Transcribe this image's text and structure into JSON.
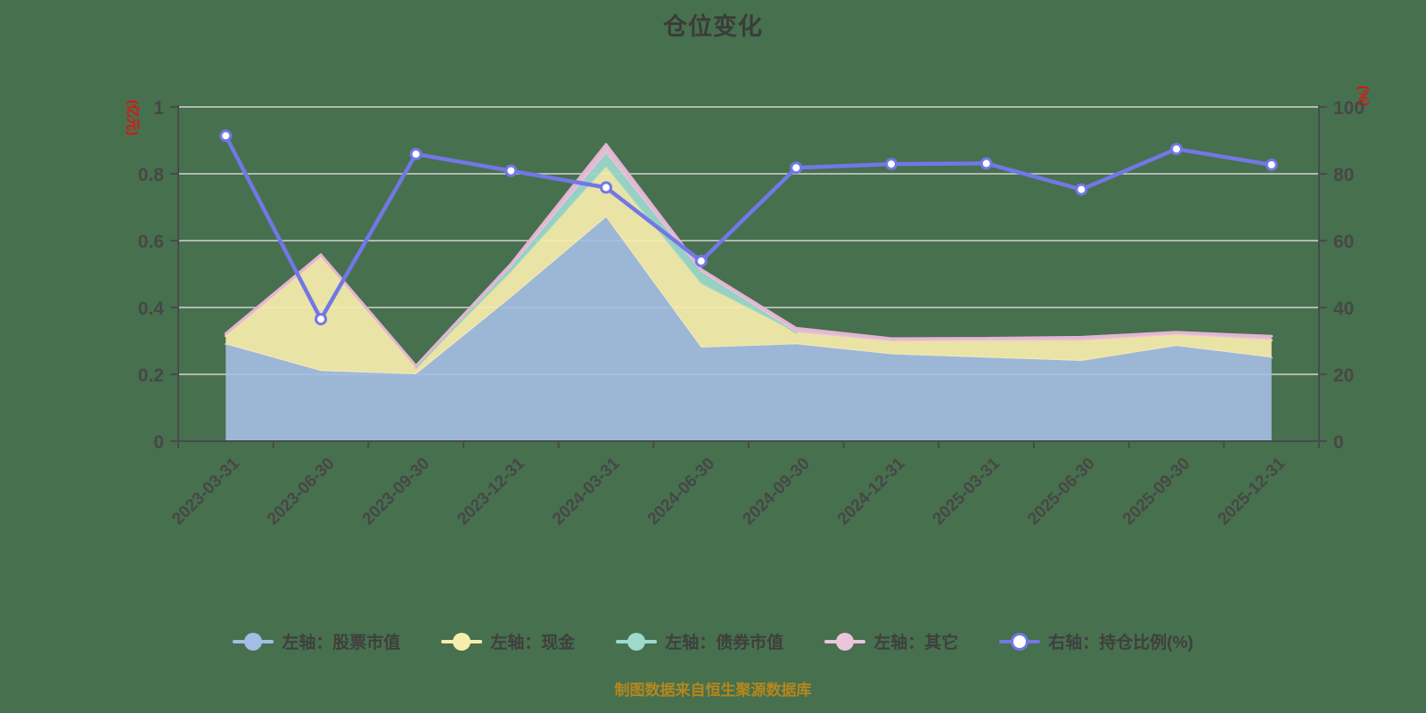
{
  "title": "仓位变化",
  "caption": "制图数据来自恒生聚源数据库",
  "background_color": "#47704e",
  "chart_data": {
    "type": "area",
    "subtype": "stacked-area-with-line",
    "categories": [
      "2023-03-31",
      "2023-06-30",
      "2023-09-30",
      "2023-12-31",
      "2024-03-31",
      "2024-06-30",
      "2024-09-30",
      "2024-12-31",
      "2025-03-31",
      "2025-06-30",
      "2025-09-30",
      "2025-12-31"
    ],
    "left_axis": {
      "name": "(亿元)",
      "max": 1,
      "ticks": [
        0,
        0.2,
        0.4,
        0.6,
        0.8,
        1
      ],
      "tick_labels": [
        "0",
        "0.2",
        "0.4",
        "0.6",
        "0.8",
        "1"
      ],
      "name_color": "#e01212"
    },
    "right_axis": {
      "name": "(%)",
      "max": 100,
      "ticks": [
        0,
        20,
        40,
        60,
        80,
        100
      ],
      "tick_labels": [
        "0",
        "20",
        "40",
        "60",
        "80",
        "100"
      ],
      "name_color": "#e01212"
    },
    "grid": true,
    "legend_position": "bottom",
    "series": [
      {
        "name": "左轴：股票市值",
        "type": "area",
        "stack": true,
        "axis": "left",
        "color": "#a4bde2",
        "line_color": "#9cb5de",
        "values": [
          0.29,
          0.21,
          0.2,
          0.43,
          0.67,
          0.28,
          0.29,
          0.26,
          0.25,
          0.24,
          0.285,
          0.25
        ]
      },
      {
        "name": "左轴：现金",
        "type": "area",
        "stack": true,
        "axis": "left",
        "color": "#f7edae",
        "line_color": "#f1e49c",
        "values": [
          0.025,
          0.34,
          0.02,
          0.075,
          0.15,
          0.19,
          0.035,
          0.038,
          0.05,
          0.06,
          0.033,
          0.052
        ]
      },
      {
        "name": "左轴：债券市值",
        "type": "area",
        "stack": true,
        "axis": "left",
        "color": "#9ed9cd",
        "line_color": "#8fd0c3",
        "values": [
          0,
          0,
          0,
          0.015,
          0.04,
          0.036,
          0,
          0,
          0,
          0,
          0,
          0
        ]
      },
      {
        "name": "左轴：其它",
        "type": "area",
        "stack": true,
        "axis": "left",
        "color": "#eac5dc",
        "line_color": "#e5b4d3",
        "values": [
          0.007,
          0.008,
          0.005,
          0.01,
          0.028,
          0.008,
          0.013,
          0.009,
          0.008,
          0.011,
          0.008,
          0.012
        ]
      },
      {
        "name": "右轴：持仓比例(%)",
        "type": "line",
        "axis": "right",
        "color": "#7277e6",
        "marker": "white-circle",
        "values": [
          91.4,
          36.5,
          85.9,
          80.9,
          75.9,
          53.9,
          81.8,
          82.9,
          83.1,
          75.3,
          87.4,
          82.7
        ]
      }
    ]
  }
}
